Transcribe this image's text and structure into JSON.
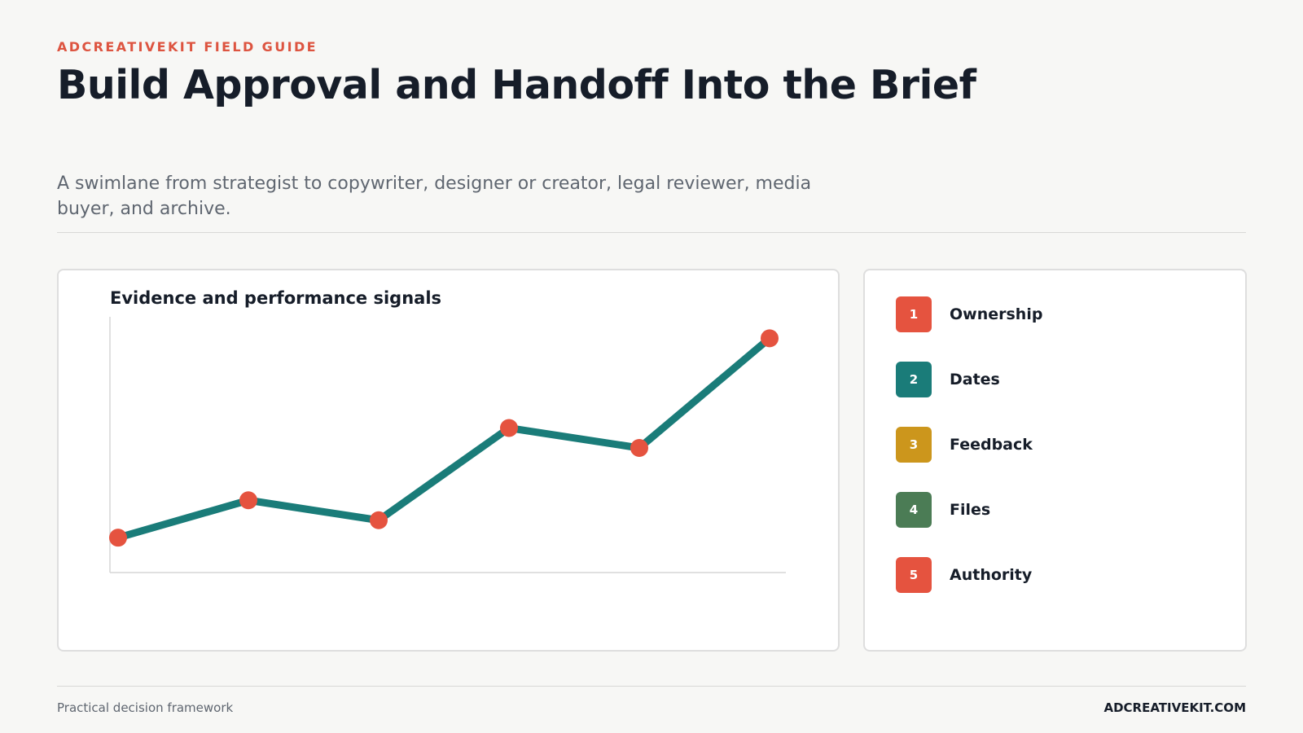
{
  "header": {
    "eyebrow": "ADCREATIVEKIT FIELD GUIDE",
    "title": "Build Approval and Handoff Into the Brief",
    "subtitle": "A swimlane from strategist to copywriter, designer or creator, legal reviewer, media buyer, and archive."
  },
  "chart_data": {
    "type": "line",
    "title": "Evidence and performance signals",
    "x": [
      1,
      2,
      3,
      4,
      5,
      6
    ],
    "series": [
      {
        "values": [
          14,
          29,
          21,
          58,
          50,
          94
        ]
      }
    ],
    "ylim": [
      0,
      100
    ],
    "grid": false,
    "line_color": "#1a7c79",
    "point_color": "#e5533f"
  },
  "legend": {
    "items": [
      {
        "number": "1",
        "label": "Ownership",
        "color": "#e5533f"
      },
      {
        "number": "2",
        "label": "Dates",
        "color": "#1a7c79"
      },
      {
        "number": "3",
        "label": "Feedback",
        "color": "#cc961c"
      },
      {
        "number": "4",
        "label": "Files",
        "color": "#4b7c55"
      },
      {
        "number": "5",
        "label": "Authority",
        "color": "#e5533f"
      }
    ]
  },
  "footer": {
    "left": "Practical decision framework",
    "right": "ADCREATIVEKIT.COM"
  }
}
